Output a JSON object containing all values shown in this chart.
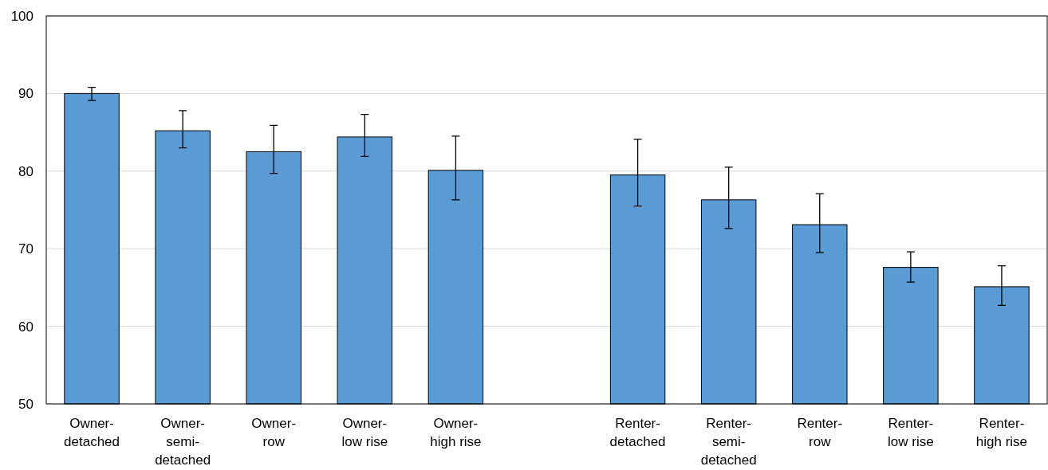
{
  "chart_data": {
    "type": "bar",
    "categories": [
      "Owner-\ndetached",
      "Owner-\nsemi-\ndetached",
      "Owner-\nrow",
      "Owner-\nlow rise",
      "Owner-\nhigh rise",
      null,
      "Renter-\ndetached",
      "Renter-\nsemi-\ndetached",
      "Renter-\nrow",
      "Renter-\nlow rise",
      "Renter-\nhigh rise"
    ],
    "values": [
      90,
      85.2,
      82.5,
      84.4,
      80.1,
      null,
      79.5,
      76.3,
      73.1,
      67.6,
      65.1
    ],
    "errors": [
      [
        89.1,
        90.8
      ],
      [
        83.0,
        87.8
      ],
      [
        79.7,
        85.9
      ],
      [
        81.9,
        87.3
      ],
      [
        76.3,
        84.5
      ],
      null,
      [
        75.5,
        84.1
      ],
      [
        72.6,
        80.5
      ],
      [
        69.5,
        77.1
      ],
      [
        65.7,
        69.6
      ],
      [
        62.7,
        67.8
      ]
    ],
    "color": "#5b9bd5",
    "ylim": [
      50,
      100
    ],
    "yticks": [
      50,
      60,
      70,
      80,
      90,
      100
    ],
    "grid": "y"
  }
}
